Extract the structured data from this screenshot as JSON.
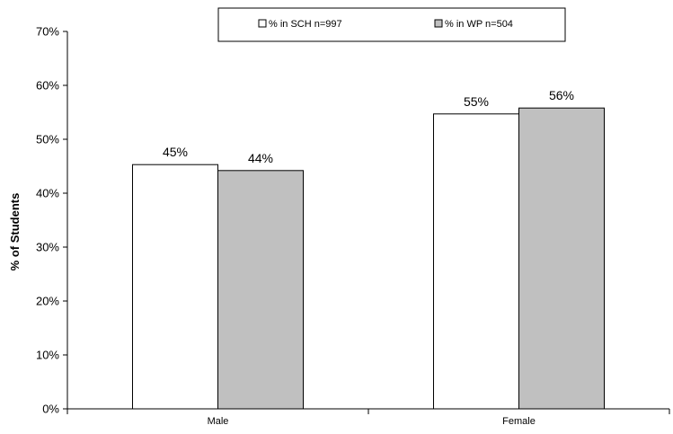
{
  "chart_data": {
    "type": "bar",
    "title": "",
    "xlabel": "",
    "ylabel": "% of Students",
    "ylim": [
      0,
      70
    ],
    "yticks": [
      0,
      10,
      20,
      30,
      40,
      50,
      60,
      70
    ],
    "tick_suffix": "%",
    "grid": false,
    "legend_position": "top-center",
    "categories": [
      "Male",
      "Female"
    ],
    "series": [
      {
        "name": "% in SCH n=997",
        "color": "#ffffff",
        "values": [
          45.3,
          54.7
        ],
        "labels": [
          "45%",
          "55%"
        ]
      },
      {
        "name": "% in WP n=504",
        "color": "#c0c0c0",
        "values": [
          44.2,
          55.8
        ],
        "labels": [
          "44%",
          "56%"
        ]
      }
    ]
  }
}
